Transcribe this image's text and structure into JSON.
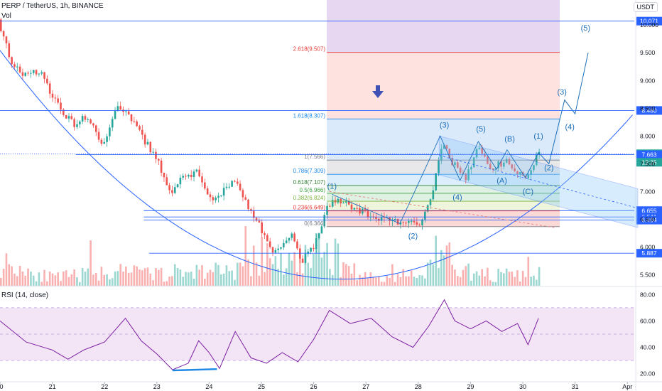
{
  "header": {
    "symbol_line": "PERP / TetherUS, 1h, BINANCE",
    "volume_label": "Vol",
    "quote_unit": "USDT",
    "rsi_label": "RSI (14, close)"
  },
  "colors": {
    "up": "#26a69a",
    "down": "#ef5350",
    "line": "#2962ff",
    "wave": "#1e6fb8",
    "rsi": "#7b1fa2",
    "rsi_band": "#f3e5f5",
    "target_zone": "#e6d3ef",
    "drop_zone": "#fde2e0",
    "ext_zone": "#dbeafb"
  },
  "chart_data": {
    "type": "candlestick",
    "x_ticks": [
      {
        "label": "0",
        "pos": 0
      },
      {
        "label": "21",
        "pos": 1
      },
      {
        "label": "22",
        "pos": 2
      },
      {
        "label": "23",
        "pos": 3
      },
      {
        "label": "24",
        "pos": 4
      },
      {
        "label": "25",
        "pos": 5
      },
      {
        "label": "26",
        "pos": 6
      },
      {
        "label": "27",
        "pos": 7
      },
      {
        "label": "28",
        "pos": 8
      },
      {
        "label": "29",
        "pos": 9
      },
      {
        "label": "30",
        "pos": 10
      },
      {
        "label": "31",
        "pos": 11
      },
      {
        "label": "Apr",
        "pos": 12
      }
    ],
    "price_ticks": [
      "5.500",
      "6.000",
      "6.500",
      "7.000",
      "7.500",
      "8.000",
      "8.500",
      "9.000",
      "9.500",
      "10.000"
    ],
    "price_range": [
      5.3,
      10.4
    ],
    "price_path": [
      [
        0.0,
        10.1
      ],
      [
        0.1,
        9.75
      ],
      [
        0.3,
        9.25
      ],
      [
        0.55,
        9.1
      ],
      [
        0.8,
        9.15
      ],
      [
        1.0,
        8.8
      ],
      [
        1.2,
        8.45
      ],
      [
        1.45,
        8.2
      ],
      [
        1.7,
        8.35
      ],
      [
        2.0,
        7.85
      ],
      [
        2.3,
        8.55
      ],
      [
        2.6,
        8.25
      ],
      [
        2.85,
        7.85
      ],
      [
        3.1,
        7.45
      ],
      [
        3.3,
        6.95
      ],
      [
        3.5,
        7.2
      ],
      [
        3.8,
        7.35
      ],
      [
        4.1,
        6.8
      ],
      [
        4.4,
        7.15
      ],
      [
        4.6,
        7.15
      ],
      [
        4.8,
        6.65
      ],
      [
        5.0,
        6.4
      ],
      [
        5.2,
        5.95
      ],
      [
        5.4,
        5.98
      ],
      [
        5.6,
        6.25
      ],
      [
        5.8,
        5.75
      ],
      [
        6.05,
        6.05
      ],
      [
        6.3,
        6.75
      ],
      [
        6.5,
        6.85
      ],
      [
        6.8,
        6.7
      ],
      [
        7.2,
        6.55
      ],
      [
        7.6,
        6.45
      ],
      [
        7.9,
        6.4
      ],
      [
        8.1,
        6.45
      ],
      [
        8.3,
        6.95
      ],
      [
        8.5,
        7.9
      ],
      [
        8.7,
        7.5
      ],
      [
        8.95,
        7.25
      ],
      [
        9.2,
        7.85
      ],
      [
        9.4,
        7.4
      ],
      [
        9.7,
        7.55
      ],
      [
        10.0,
        7.3
      ],
      [
        10.15,
        7.25
      ],
      [
        10.3,
        7.7
      ]
    ],
    "volume_range": [
      0,
      1
    ],
    "volume_path": [
      [
        0.0,
        0.6
      ],
      [
        1.0,
        0.2
      ],
      [
        2.0,
        0.35
      ],
      [
        3.0,
        0.3
      ],
      [
        4.0,
        0.4
      ],
      [
        5.0,
        0.45
      ],
      [
        5.6,
        0.6
      ],
      [
        6.2,
        0.9
      ],
      [
        7.0,
        0.2
      ],
      [
        8.0,
        0.2
      ],
      [
        8.4,
        0.95
      ],
      [
        9.0,
        0.3
      ],
      [
        10.0,
        0.25
      ],
      [
        10.3,
        0.15
      ]
    ],
    "horizontal_levels": [
      {
        "label": "10.071",
        "price": 10.071,
        "from": 0,
        "style": "solid"
      },
      {
        "label": "8.460",
        "price": 8.46,
        "from": 0,
        "style": "solid"
      },
      {
        "label": "7.680",
        "price": 7.68,
        "from": 0,
        "style": "dotted"
      },
      {
        "label": "7.663",
        "price": 7.663,
        "from": 1.45,
        "style": "solid"
      },
      {
        "label": "6.655",
        "price": 6.655,
        "from": 2.75,
        "style": "solid"
      },
      {
        "label": "6.541",
        "price": 6.541,
        "from": 2.75,
        "style": "solid"
      },
      {
        "label": "6.484",
        "price": 6.484,
        "from": 2.75,
        "style": "solid"
      },
      {
        "label": "5.887",
        "price": 5.887,
        "from": 2.85,
        "style": "solid"
      }
    ],
    "countdown": "12:25",
    "fib_levels": [
      {
        "label": "2.618(9.507)",
        "price": 9.507,
        "color": "#e53935"
      },
      {
        "label": "1.618(8.307)",
        "price": 8.307,
        "color": "#1e88e5"
      },
      {
        "label": "1(7.566)",
        "price": 7.566,
        "color": "#787b86"
      },
      {
        "label": "0.786(7.309)",
        "price": 7.309,
        "color": "#1e88e5"
      },
      {
        "label": "0.618(7.107)",
        "price": 7.107,
        "color": "#2e7d32"
      },
      {
        "label": "0.5(6.966)",
        "price": 6.966,
        "color": "#43a047"
      },
      {
        "label": "0.382(6.824)",
        "price": 6.824,
        "color": "#7cb342"
      },
      {
        "label": "0.236(6.649)",
        "price": 6.649,
        "color": "#e53935"
      },
      {
        "label": "0(6.366)",
        "price": 6.366,
        "color": "#787b86"
      }
    ],
    "wave_labels": [
      {
        "text": "(1)",
        "t": 6.35,
        "price": 7.05
      },
      {
        "text": "(2)",
        "t": 7.9,
        "price": 6.15
      },
      {
        "text": "(3)",
        "t": 8.5,
        "price": 8.15
      },
      {
        "text": "(4)",
        "t": 8.75,
        "price": 6.85
      },
      {
        "text": "(5)",
        "t": 9.2,
        "price": 8.08
      },
      {
        "text": "(A)",
        "t": 9.6,
        "price": 7.15
      },
      {
        "text": "(B)",
        "t": 9.75,
        "price": 7.9
      },
      {
        "text": "(C)",
        "t": 10.1,
        "price": 6.95
      },
      {
        "text": "(1)",
        "t": 10.3,
        "price": 7.95
      },
      {
        "text": "(2)",
        "t": 10.5,
        "price": 7.38
      },
      {
        "text": "(3)",
        "t": 10.75,
        "price": 8.75
      },
      {
        "text": "(4)",
        "t": 10.9,
        "price": 8.12
      },
      {
        "text": "(5)",
        "t": 11.2,
        "price": 9.9
      }
    ],
    "projection_path": [
      [
        10.3,
        7.7
      ],
      [
        10.5,
        7.5
      ],
      [
        10.8,
        8.65
      ],
      [
        11.0,
        8.4
      ],
      [
        11.25,
        9.5
      ]
    ],
    "rsi_ticks": [
      "20.00",
      "40.00",
      "60.00",
      "80.00"
    ],
    "rsi_range": [
      15,
      85
    ],
    "rsi_band": [
      30,
      70
    ],
    "rsi_path": [
      [
        0.0,
        60
      ],
      [
        0.5,
        44
      ],
      [
        1.0,
        38
      ],
      [
        1.3,
        31
      ],
      [
        1.6,
        38
      ],
      [
        2.0,
        44
      ],
      [
        2.4,
        62
      ],
      [
        2.7,
        45
      ],
      [
        3.0,
        35
      ],
      [
        3.3,
        23
      ],
      [
        3.6,
        28
      ],
      [
        3.8,
        45
      ],
      [
        4.0,
        36
      ],
      [
        4.2,
        24
      ],
      [
        4.5,
        52
      ],
      [
        4.8,
        32
      ],
      [
        5.1,
        28
      ],
      [
        5.4,
        36
      ],
      [
        5.7,
        29
      ],
      [
        6.0,
        46
      ],
      [
        6.3,
        68
      ],
      [
        6.7,
        58
      ],
      [
        7.1,
        62
      ],
      [
        7.5,
        48
      ],
      [
        7.9,
        40
      ],
      [
        8.2,
        56
      ],
      [
        8.5,
        76
      ],
      [
        8.7,
        60
      ],
      [
        9.0,
        54
      ],
      [
        9.3,
        60
      ],
      [
        9.6,
        52
      ],
      [
        9.9,
        58
      ],
      [
        10.1,
        42
      ],
      [
        10.3,
        62
      ]
    ]
  }
}
